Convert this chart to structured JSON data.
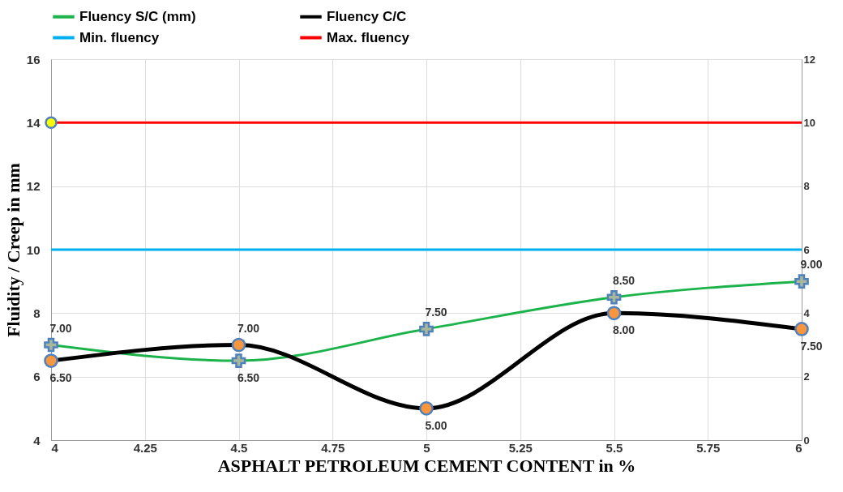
{
  "chart_data": {
    "type": "line",
    "xlabel": "ASPHALT PETROLEUM CEMENT CONTENT in %",
    "ylabel": "Fluidity / Creep in mm",
    "x": [
      4,
      4.5,
      5,
      5.5,
      6
    ],
    "xlim": [
      4,
      6
    ],
    "xticks": [
      4,
      4.25,
      4.5,
      4.75,
      5,
      5.25,
      5.5,
      5.75,
      6
    ],
    "ylim": [
      4,
      16
    ],
    "yticks": [
      4,
      6,
      8,
      10,
      12,
      14,
      16
    ],
    "y2lim": [
      0,
      12
    ],
    "y2ticks": [
      0,
      2,
      4,
      6,
      8,
      10,
      12
    ],
    "grid": true,
    "legend": "top",
    "series": [
      {
        "name": "Fluency S/C (mm)",
        "color": "#1db34b",
        "colors": [
          "#a9b89a",
          "#a9b89a",
          "#a9b89a",
          "#a9b89a",
          "#a9b89a"
        ],
        "marker": "cross",
        "values": [
          7,
          6.5,
          7.5,
          8.5,
          9
        ],
        "value_labels": [
          "7.00",
          "6.50",
          "7.50",
          "8.50",
          "9.00"
        ]
      },
      {
        "name": "Fluency C/C",
        "color": "#000000",
        "colors": [
          "#f7963f",
          "#f7963f",
          "#f7963f",
          "#f7963f",
          "#f7963f"
        ],
        "marker": "circle",
        "values": [
          6.5,
          7,
          5,
          8,
          7.5
        ],
        "value_labels": [
          "6.50",
          "7.00",
          "5.00",
          "8.00",
          "7.50"
        ]
      },
      {
        "type": "scatter",
        "color": "#ffff00",
        "x": [
          4
        ],
        "values": [
          14
        ],
        "marker": "circle"
      }
    ],
    "ref_lines": [
      {
        "axis": "y",
        "value": 10,
        "label": "Min. fluency",
        "color": "#00b0f0"
      },
      {
        "axis": "y",
        "value": 14,
        "label": "Max. fluency",
        "color": "#ff0000"
      }
    ]
  }
}
